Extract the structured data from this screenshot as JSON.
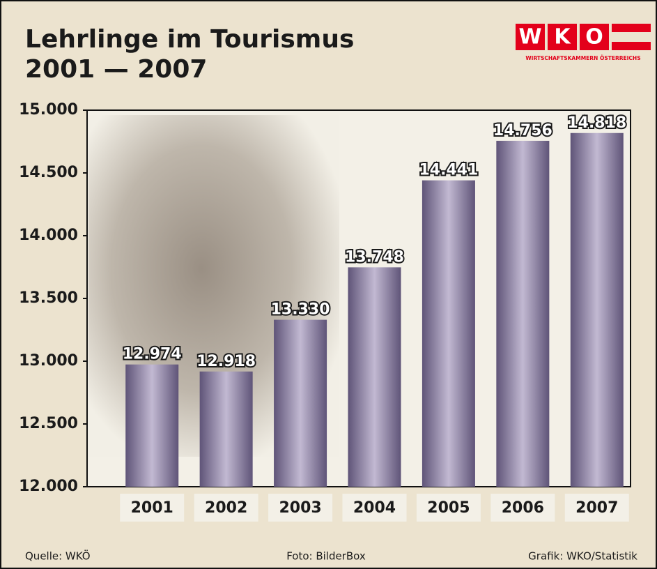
{
  "chart_data": {
    "type": "bar",
    "title": "Lehrlinge im Tourismus",
    "subtitle": "2001 — 2007",
    "categories": [
      "2001",
      "2002",
      "2003",
      "2004",
      "2005",
      "2006",
      "2007"
    ],
    "values": [
      12974,
      12918,
      13330,
      13748,
      14441,
      14756,
      14818
    ],
    "value_labels": [
      "12.974",
      "12.918",
      "13.330",
      "13.748",
      "14.441",
      "14.756",
      "14.818"
    ],
    "color": "#7a6e94",
    "ylim": [
      12000,
      15000
    ],
    "yticks": [
      {
        "value": 12000,
        "label": "12.000"
      },
      {
        "value": 12500,
        "label": "12.500"
      },
      {
        "value": 13000,
        "label": "13.000"
      },
      {
        "value": 13500,
        "label": "13.500"
      },
      {
        "value": 14000,
        "label": "14.000"
      },
      {
        "value": 14500,
        "label": "14.500"
      },
      {
        "value": 15000,
        "label": "15.000"
      }
    ]
  },
  "logo": {
    "letters": [
      "W",
      "K",
      "O"
    ],
    "caption": "WIRTSCHAFTSKAMMERN ÖSTERREICHS"
  },
  "footer": {
    "source": "Quelle: WKÖ",
    "photo": "Foto: BilderBox",
    "graphic": "Grafik: WKO/Statistik"
  }
}
